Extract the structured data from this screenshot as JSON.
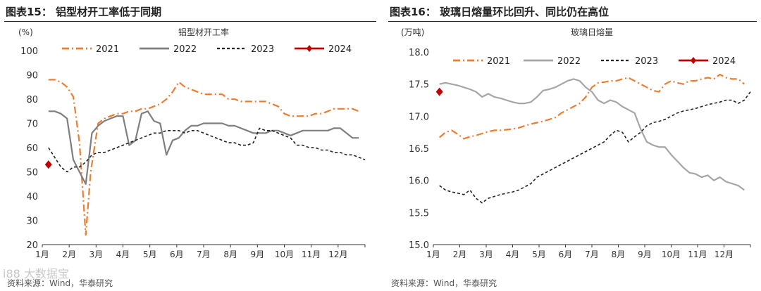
{
  "watermark": "i88 大数据宝",
  "chart_data": [
    {
      "type": "line",
      "title": "图表15：  铝型材开工率低于同期",
      "subtitle": "铝型材开工率",
      "ylabel": "(%)",
      "xlabel": "",
      "ylim": [
        20,
        100
      ],
      "yticks": [
        20,
        30,
        40,
        50,
        60,
        70,
        80,
        90,
        100
      ],
      "xlim": [
        0,
        52
      ],
      "x_tick_labels": [
        "1月",
        "2月",
        "3月",
        "4月",
        "5月",
        "6月",
        "7月",
        "8月",
        "9月",
        "10月",
        "11月",
        "12月"
      ],
      "source": "资料来源：Wind，华泰研究",
      "series": [
        {
          "name": "2021",
          "color": "#ED7D31",
          "dash": "10 4 2 4",
          "width": 2.2,
          "x": [
            1,
            2,
            3,
            4,
            5,
            6,
            7,
            7.8,
            9,
            10,
            11,
            12,
            13,
            14,
            15,
            16,
            17,
            18,
            19,
            20,
            21,
            22,
            23,
            24,
            25,
            26,
            27,
            28,
            29,
            30,
            31,
            32,
            33,
            34,
            35,
            36,
            37,
            38,
            39,
            40,
            41,
            42,
            43,
            44,
            45,
            46,
            47,
            48,
            49,
            50,
            51
          ],
          "y": [
            88,
            88,
            87,
            85,
            81,
            62,
            24,
            50,
            70,
            72,
            73,
            74,
            74,
            75,
            75,
            76,
            76,
            77,
            78,
            80,
            83,
            87,
            85,
            84,
            83,
            82,
            82,
            82,
            82,
            80,
            80,
            79,
            79,
            79,
            79,
            79,
            78,
            77,
            74,
            73,
            73,
            73,
            73,
            74,
            74,
            75,
            76,
            76,
            76,
            76,
            75
          ]
        },
        {
          "name": "2022",
          "color": "#7F7F7F",
          "dash": "",
          "width": 2.2,
          "x": [
            1,
            2,
            3,
            4,
            5,
            6,
            7,
            8,
            9,
            10,
            11,
            12,
            13,
            14,
            15,
            16,
            17,
            18,
            19,
            20,
            21,
            22,
            23,
            24,
            25,
            26,
            27,
            28,
            29,
            30,
            31,
            32,
            33,
            34,
            35,
            36,
            37,
            38,
            39,
            40,
            41,
            42,
            43,
            44,
            45,
            46,
            47,
            48,
            49,
            50,
            51
          ],
          "y": [
            75,
            75,
            74,
            72,
            55,
            50,
            45,
            66,
            69,
            71,
            72,
            73,
            73,
            61,
            63,
            74,
            75,
            71,
            70,
            57,
            63,
            64,
            67,
            69,
            69,
            70,
            70,
            70,
            70,
            69,
            69,
            68,
            67,
            66,
            66,
            66,
            67,
            67,
            66,
            65,
            66,
            67,
            67,
            67,
            67,
            67,
            68,
            68,
            66,
            64,
            64
          ]
        },
        {
          "name": "2023",
          "color": "#222222",
          "dash": "4 3",
          "width": 1.6,
          "x": [
            1,
            2,
            3,
            4,
            5,
            6,
            7,
            8,
            9,
            10,
            11,
            12,
            13,
            14,
            15,
            16,
            17,
            18,
            19,
            20,
            21,
            22,
            23,
            24,
            25,
            26,
            27,
            28,
            29,
            30,
            31,
            32,
            33,
            34,
            35,
            36,
            37,
            38,
            39,
            40,
            41,
            42,
            43,
            44,
            45,
            46,
            47,
            48,
            49,
            50,
            51,
            52
          ],
          "y": [
            60,
            56,
            52,
            50,
            52,
            52,
            54,
            57,
            58,
            58,
            59,
            60,
            61,
            62,
            63,
            64,
            65,
            66,
            66,
            67,
            67,
            67,
            66,
            67,
            67,
            66,
            65,
            64,
            63,
            62,
            62,
            61,
            61,
            62,
            68,
            67,
            67,
            66,
            65,
            64,
            61,
            61,
            60,
            60,
            59,
            59,
            58,
            58,
            57,
            57,
            56,
            55
          ]
        },
        {
          "name": "2024",
          "color": "#C00000",
          "dash": "",
          "width": 2.2,
          "marker": "diamond",
          "x": [
            1
          ],
          "y": [
            53
          ]
        }
      ]
    },
    {
      "type": "line",
      "title": "图表16：  玻璃日熔量环比回升、同比仍在高位",
      "subtitle": "玻璃日熔量",
      "ylabel": "(万吨)",
      "xlabel": "",
      "ylim": [
        15.0,
        18.0
      ],
      "yticks": [
        15.0,
        15.5,
        16.0,
        16.5,
        17.0,
        17.5,
        18.0
      ],
      "xlim": [
        0,
        52
      ],
      "x_tick_labels": [
        "1月",
        "2月",
        "3月",
        "4月",
        "5月",
        "6月",
        "7月",
        "8月",
        "9月",
        "10月",
        "11月",
        "12月"
      ],
      "source": "资料来源：Wind，华泰研究",
      "series": [
        {
          "name": "2021",
          "color": "#ED7D31",
          "dash": "10 4 2 4",
          "width": 2.2,
          "x": [
            1,
            2,
            3,
            4,
            5,
            6,
            7,
            8,
            9,
            10,
            11,
            12,
            13,
            14,
            15,
            16,
            17,
            18,
            19,
            20,
            21,
            22,
            23,
            24,
            25,
            26,
            27,
            28,
            29,
            30,
            31,
            32,
            33,
            34,
            35,
            36,
            37,
            38,
            39,
            40,
            41,
            42,
            43,
            44,
            45,
            46,
            47,
            48,
            49,
            50,
            51
          ],
          "y": [
            16.67,
            16.75,
            16.78,
            16.72,
            16.65,
            16.68,
            16.7,
            16.73,
            16.76,
            16.78,
            16.78,
            16.79,
            16.8,
            16.82,
            16.85,
            16.88,
            16.9,
            16.92,
            16.95,
            16.98,
            17.05,
            17.1,
            17.15,
            17.2,
            17.3,
            17.45,
            17.52,
            17.53,
            17.55,
            17.55,
            17.58,
            17.6,
            17.55,
            17.5,
            17.45,
            17.4,
            17.38,
            17.5,
            17.55,
            17.52,
            17.5,
            17.55,
            17.55,
            17.58,
            17.6,
            17.58,
            17.65,
            17.6,
            17.58,
            17.58,
            17.5
          ]
        },
        {
          "name": "2022",
          "color": "#A6A6A6",
          "dash": "",
          "width": 2.2,
          "x": [
            1,
            2,
            3,
            4,
            5,
            6,
            7,
            8,
            9,
            10,
            11,
            12,
            13,
            14,
            15,
            16,
            17,
            18,
            19,
            20,
            21,
            22,
            23,
            24,
            25,
            26,
            27,
            28,
            29,
            30,
            31,
            32,
            33,
            34,
            35,
            36,
            37,
            38,
            39,
            40,
            41,
            42,
            43,
            44,
            45,
            46,
            47,
            48,
            49,
            50,
            51
          ],
          "y": [
            17.5,
            17.52,
            17.5,
            17.48,
            17.45,
            17.42,
            17.38,
            17.3,
            17.35,
            17.3,
            17.28,
            17.25,
            17.22,
            17.2,
            17.2,
            17.22,
            17.3,
            17.4,
            17.42,
            17.45,
            17.5,
            17.55,
            17.58,
            17.55,
            17.45,
            17.38,
            17.25,
            17.2,
            17.25,
            17.22,
            17.15,
            17.1,
            17.05,
            16.8,
            16.6,
            16.55,
            16.52,
            16.52,
            16.4,
            16.3,
            16.2,
            16.12,
            16.1,
            16.05,
            16.08,
            16.0,
            16.05,
            15.98,
            15.95,
            15.92,
            15.85
          ]
        },
        {
          "name": "2023",
          "color": "#222222",
          "dash": "4 3",
          "width": 1.6,
          "x": [
            1,
            2,
            3,
            4,
            5,
            6,
            7,
            8,
            9,
            10,
            11,
            12,
            13,
            14,
            15,
            16,
            17,
            18,
            19,
            20,
            21,
            22,
            23,
            24,
            25,
            26,
            27,
            28,
            29,
            30,
            31,
            32,
            33,
            34,
            35,
            36,
            37,
            38,
            39,
            40,
            41,
            42,
            43,
            44,
            45,
            46,
            47,
            48,
            49,
            50,
            51,
            52
          ],
          "y": [
            15.92,
            15.85,
            15.82,
            15.8,
            15.78,
            15.85,
            15.72,
            15.65,
            15.72,
            15.75,
            15.78,
            15.8,
            15.82,
            15.85,
            15.9,
            15.95,
            16.05,
            16.1,
            16.15,
            16.2,
            16.25,
            16.3,
            16.35,
            16.4,
            16.45,
            16.5,
            16.55,
            16.6,
            16.7,
            16.78,
            16.75,
            16.6,
            16.68,
            16.75,
            16.85,
            16.9,
            16.92,
            16.95,
            17.0,
            17.05,
            17.08,
            17.1,
            17.12,
            17.15,
            17.18,
            17.2,
            17.22,
            17.25,
            17.25,
            17.2,
            17.25,
            17.38
          ]
        },
        {
          "name": "2024",
          "color": "#C00000",
          "dash": "",
          "width": 2.2,
          "marker": "diamond",
          "x": [
            1
          ],
          "y": [
            17.38
          ]
        }
      ]
    }
  ]
}
